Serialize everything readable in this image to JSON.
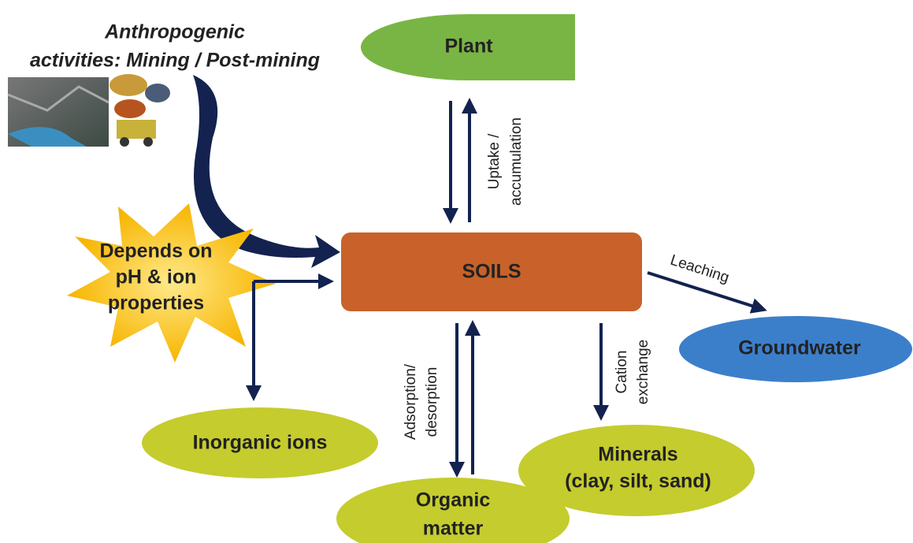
{
  "source": {
    "lines": [
      "Anthropogenic",
      "activities: Mining / Post-mining"
    ]
  },
  "center": {
    "label": "SOILS"
  },
  "factor": {
    "lines": [
      "Depends on",
      "pH & ion",
      "properties"
    ]
  },
  "nodes": [
    {
      "lines": [
        "Plant"
      ]
    },
    {
      "lines": [
        "Groundwater"
      ]
    },
    {
      "lines": [
        "Inorganic ions"
      ]
    },
    {
      "lines": [
        "Minerals",
        "(clay, silt, sand)"
      ]
    },
    {
      "lines": [
        "Organic",
        "matter"
      ]
    }
  ],
  "processes": [
    {
      "lines": [
        "Uptake /",
        "accumulation"
      ]
    },
    {
      "lines": [
        "Leaching"
      ]
    },
    {
      "lines": [
        "Cation",
        "exchange"
      ]
    },
    {
      "lines": [
        "Adsorption/",
        "desorption"
      ]
    }
  ]
}
